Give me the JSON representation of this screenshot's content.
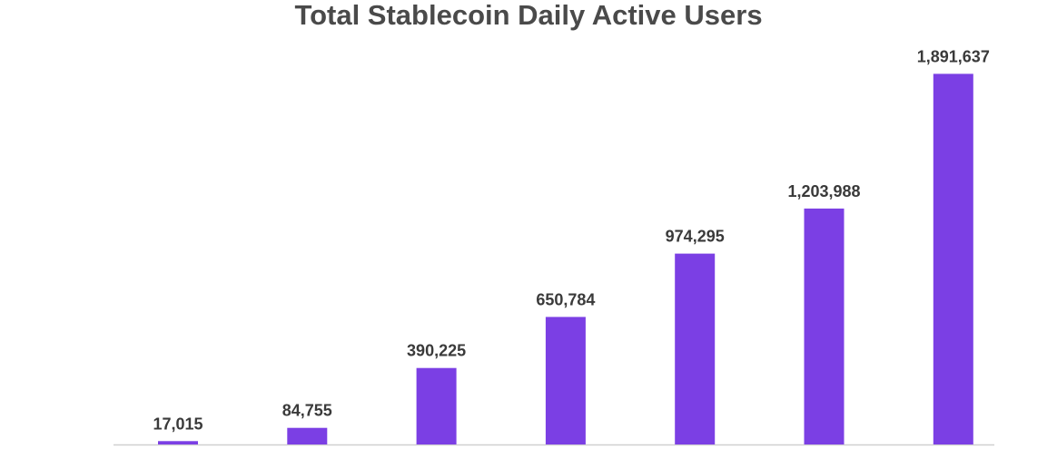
{
  "chart_data": {
    "type": "bar",
    "title": "Total Stablecoin Daily Active Users",
    "xlabel": "",
    "ylabel": "",
    "values": [
      17015,
      84755,
      390225,
      650784,
      974295,
      1203988,
      1891637
    ],
    "value_labels": [
      "17,015",
      "84,755",
      "390,225",
      "650,784",
      "974,295",
      "1,203,988",
      "1,891,637"
    ],
    "ylim": [
      0,
      2000000
    ],
    "grid": false,
    "legend": "none",
    "bar_color": "#7b3fe4",
    "baseline_color": "#d0d0d0",
    "title_color": "#4a4a4a",
    "label_color": "#3a3a3a"
  }
}
